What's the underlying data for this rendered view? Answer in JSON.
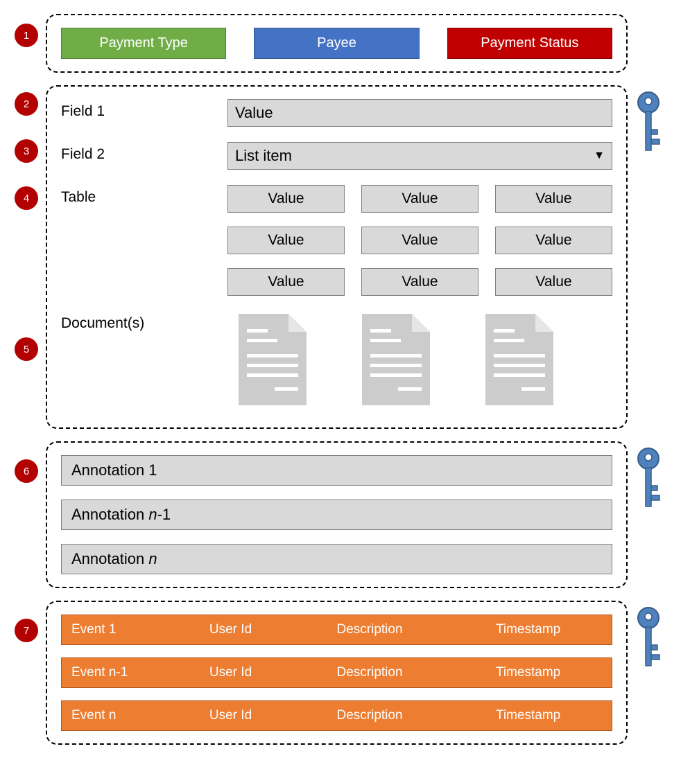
{
  "colors": {
    "badge_bg": "#b30000",
    "badge_text": "#ffffff",
    "panel_border": "#000000",
    "cell_bg": "#d9d9d9",
    "cell_border": "#808080",
    "text": "#000000",
    "event_bg": "#ed7d31",
    "event_border": "#b05a1e",
    "event_text": "#ffffff",
    "key_fill": "#4f81bd",
    "key_stroke": "#385d8a",
    "doc_fill": "#cccccc",
    "doc_line": "#ffffff"
  },
  "header": {
    "pills": [
      {
        "label": "Payment Type",
        "bg": "#70ad47"
      },
      {
        "label": "Payee",
        "bg": "#4472c4"
      },
      {
        "label": "Payment Status",
        "bg": "#c00000"
      }
    ]
  },
  "badges": [
    "1",
    "2",
    "3",
    "4",
    "5",
    "6",
    "7"
  ],
  "form": {
    "field1_label": "Field 1",
    "field1_value": "Value",
    "field2_label": "Field 2",
    "field2_value": "List item",
    "table_label": "Table",
    "table_cells": [
      "Value",
      "Value",
      "Value",
      "Value",
      "Value",
      "Value",
      "Value",
      "Value",
      "Value"
    ],
    "docs_label": "Document(s)"
  },
  "annotations": [
    {
      "prefix": "Annotation 1",
      "italic_part": ""
    },
    {
      "prefix": "Annotation ",
      "italic_part": "n",
      "suffix": "-1"
    },
    {
      "prefix": "Annotation ",
      "italic_part": "n",
      "suffix": ""
    }
  ],
  "events": [
    {
      "c1": "Event 1",
      "c2": "User Id",
      "c3": "Description",
      "c4": "Timestamp"
    },
    {
      "c1": "Event n-1",
      "c2": "User Id",
      "c3": "Description",
      "c4": "Timestamp"
    },
    {
      "c1": "Event n",
      "c2": "User Id",
      "c3": "Description",
      "c4": "Timestamp"
    }
  ]
}
